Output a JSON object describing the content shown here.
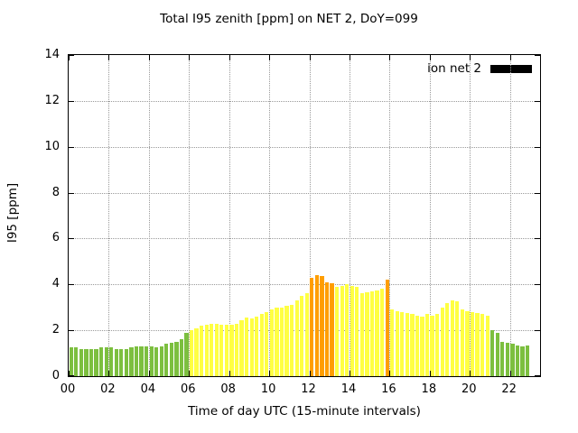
{
  "title": "Total I95 zenith [ppm] on NET 2, DoY=099",
  "axes": {
    "y_label": "I95 [ppm]",
    "x_label": "Time of day UTC (15-minute intervals)"
  },
  "legend": {
    "label": "ion net 2",
    "swatch_color": "#000000"
  },
  "chart_data": {
    "type": "bar",
    "title": "Total I95 zenith [ppm] on NET 2, DoY=099",
    "xlabel": "Time of day UTC (15-minute intervals)",
    "ylabel": "I95 [ppm]",
    "ylim": [
      0,
      14
    ],
    "x_domain_hours": [
      0,
      23.5
    ],
    "interval_minutes": 15,
    "start_time": "00:00",
    "grid": true,
    "legend_position": "top-right",
    "y_ticks": [
      0,
      2,
      4,
      6,
      8,
      10,
      12,
      14
    ],
    "y_tick_labels": [
      "0",
      "2",
      "4",
      "6",
      "8",
      "10",
      "12",
      "14"
    ],
    "x_ticks_hours": [
      0,
      2,
      4,
      6,
      8,
      10,
      12,
      14,
      16,
      18,
      20,
      22
    ],
    "x_tick_labels": [
      "00",
      "02",
      "04",
      "06",
      "08",
      "10",
      "12",
      "14",
      "16",
      "18",
      "20",
      "22"
    ],
    "series_name": "ion net 2",
    "values": [
      1.25,
      1.25,
      1.2,
      1.2,
      1.2,
      1.2,
      1.25,
      1.25,
      1.25,
      1.2,
      1.2,
      1.2,
      1.25,
      1.3,
      1.3,
      1.3,
      1.3,
      1.25,
      1.3,
      1.4,
      1.45,
      1.5,
      1.6,
      1.9,
      2.0,
      2.1,
      2.2,
      2.25,
      2.3,
      2.3,
      2.25,
      2.25,
      2.25,
      2.3,
      2.45,
      2.55,
      2.5,
      2.6,
      2.7,
      2.8,
      2.9,
      3.0,
      3.0,
      3.05,
      3.1,
      3.3,
      3.5,
      3.6,
      4.3,
      4.4,
      4.35,
      4.1,
      4.05,
      3.9,
      3.95,
      4.0,
      3.95,
      3.9,
      3.6,
      3.65,
      3.7,
      3.75,
      3.8,
      4.2,
      2.9,
      2.85,
      2.8,
      2.75,
      2.7,
      2.65,
      2.6,
      2.7,
      2.65,
      2.7,
      3.0,
      3.2,
      3.3,
      3.25,
      2.9,
      2.85,
      2.8,
      2.75,
      2.7,
      2.65,
      2.0,
      1.9,
      1.5,
      1.45,
      1.4,
      1.35,
      1.3,
      1.35
    ],
    "colors": [
      "g",
      "g",
      "g",
      "g",
      "g",
      "g",
      "g",
      "g",
      "g",
      "g",
      "g",
      "g",
      "g",
      "g",
      "g",
      "g",
      "g",
      "g",
      "g",
      "g",
      "g",
      "g",
      "g",
      "g",
      "y",
      "y",
      "y",
      "y",
      "y",
      "y",
      "y",
      "y",
      "y",
      "y",
      "y",
      "y",
      "y",
      "y",
      "y",
      "y",
      "y",
      "y",
      "y",
      "y",
      "y",
      "y",
      "y",
      "y",
      "o",
      "o",
      "o",
      "o",
      "o",
      "y",
      "y",
      "y",
      "y",
      "y",
      "y",
      "y",
      "y",
      "y",
      "y",
      "o",
      "y",
      "y",
      "y",
      "y",
      "y",
      "y",
      "y",
      "y",
      "y",
      "y",
      "y",
      "y",
      "y",
      "y",
      "y",
      "y",
      "y",
      "y",
      "y",
      "y",
      "g",
      "g",
      "g",
      "g",
      "g",
      "g",
      "g",
      "g"
    ],
    "color_map": {
      "g": "#7cbf3f",
      "y": "#ffff42",
      "o": "#ff9e00"
    }
  }
}
